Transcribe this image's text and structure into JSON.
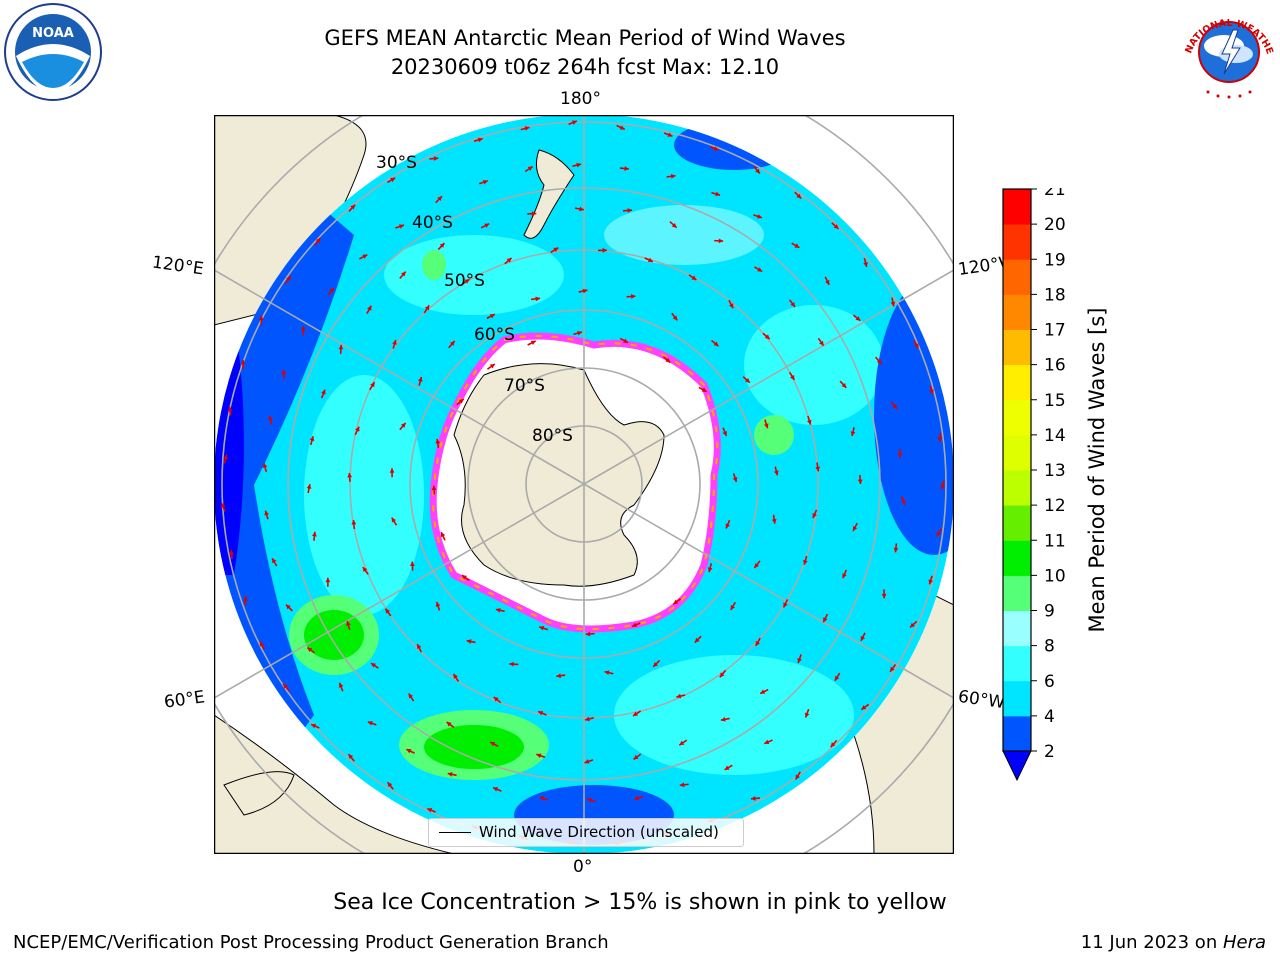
{
  "title": {
    "line1": "GEFS MEAN Antarctic Mean Period of Wind Waves",
    "line2": "20230609 t06z 264h fcst   Max: 12.10"
  },
  "logos": {
    "left": {
      "icon": "noaa-logo-icon",
      "text": "NOAA"
    },
    "right": {
      "icon": "nws-logo-icon",
      "text": "NATIONAL WEATHER SERVICE"
    }
  },
  "map": {
    "projection": "south-polar-stereographic",
    "longitude_labels": {
      "top": "180°",
      "bottom": "0°",
      "left_upper": "120°E",
      "left_lower": "60°E",
      "right_upper": "120°W",
      "right_lower": "60°W"
    },
    "latitude_labels": [
      "30°S",
      "40°S",
      "50°S",
      "60°S",
      "70°S",
      "80°S"
    ],
    "ocean_color": "#00e5ff",
    "land_color": "#efebd7",
    "ice_edge_colors": [
      "#ff40ff",
      "#ffa500",
      "#ffff00"
    ],
    "arrow_color": "#dd0000",
    "legend": "Wind Wave Direction (unscaled)"
  },
  "colorbar": {
    "label": "Mean Period of Wind Waves [s]",
    "ticks": [
      "2",
      "4",
      "6",
      "8",
      "9",
      "10",
      "11",
      "12",
      "13",
      "14",
      "15",
      "16",
      "17",
      "18",
      "19",
      "20",
      "21"
    ],
    "colors": [
      "#0055ff",
      "#00e5ff",
      "#33ffff",
      "#99ffff",
      "#55ff77",
      "#00ee00",
      "#66ee00",
      "#bbff00",
      "#ddff00",
      "#eeff00",
      "#ffee00",
      "#ffbb00",
      "#ff8800",
      "#ff6600",
      "#ff3300",
      "#ff0000"
    ],
    "underflow_color": "#0000ff"
  },
  "footer": {
    "note": "Sea Ice Concentration > 15% is shown in pink to yellow",
    "left": "NCEP/EMC/Verification Post Processing Product Generation Branch",
    "right_date": "11 Jun 2023 on ",
    "right_host": "Hera"
  }
}
